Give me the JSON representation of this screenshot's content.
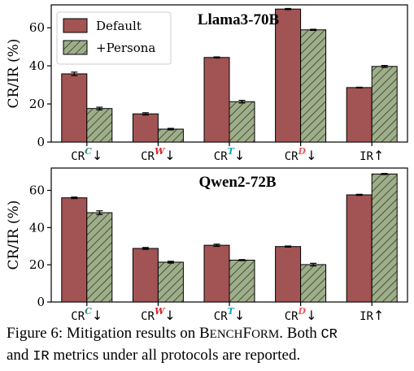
{
  "chart_data": [
    {
      "type": "bar",
      "title": "Llama3-70B",
      "ylabel": "CR/IR (%)",
      "ylim": [
        0,
        72
      ],
      "yticks": [
        "0",
        "20",
        "40",
        "60"
      ],
      "categories": [
        {
          "base": "CR",
          "sup": "C",
          "sup_color": "#2e8b7a",
          "arrow": "↓"
        },
        {
          "base": "CR",
          "sup": "W",
          "sup_color": "#d62728",
          "arrow": "↓"
        },
        {
          "base": "CR",
          "sup": "T",
          "sup_color": "#17a2b8",
          "arrow": "↓"
        },
        {
          "base": "CR",
          "sup": "D",
          "sup_color": "#e65c5c",
          "arrow": "↓"
        },
        {
          "base": "IR",
          "sup": "",
          "sup_color": "#000000",
          "arrow": "↑"
        }
      ],
      "series": [
        {
          "name": "Default",
          "values": [
            35.8,
            14.8,
            44.4,
            69.8,
            28.6
          ],
          "errors": [
            0.9,
            0.6,
            0.3,
            0.3,
            0.2
          ]
        },
        {
          "name": "+Persona",
          "values": [
            17.6,
            6.8,
            21.2,
            58.9,
            39.7
          ],
          "errors": [
            0.7,
            0.4,
            0.7,
            0.3,
            0.5
          ]
        }
      ],
      "legend_position": "top-left",
      "grid": false
    },
    {
      "type": "bar",
      "title": "Qwen2-72B",
      "ylabel": "CR/IR (%)",
      "ylim": [
        0,
        72
      ],
      "yticks": [
        "0",
        "20",
        "40",
        "60"
      ],
      "categories": [
        {
          "base": "CR",
          "sup": "C",
          "sup_color": "#2e8b7a",
          "arrow": "↓"
        },
        {
          "base": "CR",
          "sup": "W",
          "sup_color": "#d62728",
          "arrow": "↓"
        },
        {
          "base": "CR",
          "sup": "T",
          "sup_color": "#17a2b8",
          "arrow": "↓"
        },
        {
          "base": "CR",
          "sup": "D",
          "sup_color": "#e65c5c",
          "arrow": "↓"
        },
        {
          "base": "IR",
          "sup": "",
          "sup_color": "#000000",
          "arrow": "↑"
        }
      ],
      "series": [
        {
          "name": "Default",
          "values": [
            56.0,
            28.8,
            30.5,
            29.8,
            57.6
          ],
          "errors": [
            0.4,
            0.5,
            0.6,
            0.3,
            0.3
          ]
        },
        {
          "name": "+Persona",
          "values": [
            48.0,
            21.4,
            22.5,
            20.1,
            68.8
          ],
          "errors": [
            1.0,
            0.5,
            0.3,
            0.7,
            0.3
          ]
        }
      ],
      "grid": false
    }
  ],
  "colors": {
    "default_fill": "#a25353",
    "persona_fill": "#9fae8a",
    "hatch": "#2d3a24"
  },
  "caption": {
    "lead": "Figure 6: Mitigation results on ",
    "bench_b": "B",
    "bench_rest": "ENCH",
    "bench_f": "F",
    "bench_rest2": "ORM",
    "mid1": ". Both ",
    "cr": "CR",
    "and": "and ",
    "ir": "IR",
    "tail": " metrics under all protocols are reported."
  }
}
